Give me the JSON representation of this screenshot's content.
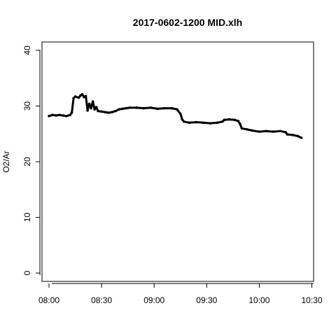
{
  "chart_data": {
    "type": "scatter",
    "title": "2017-0602-1200 MID.xlh",
    "xlabel": "",
    "ylabel": "O2/Ar",
    "x_unit": "time",
    "xlim": [
      "07:56",
      "10:31"
    ],
    "ylim": [
      -1.5,
      41.5
    ],
    "x_ticks": [
      "08:00",
      "08:30",
      "09:00",
      "09:30",
      "10:00",
      "10:30"
    ],
    "y_ticks": [
      0,
      10,
      20,
      30,
      40
    ],
    "grid": false,
    "legend": "none",
    "series": [
      {
        "color": "#000000",
        "points": [
          [
            "08:00",
            28.2
          ],
          [
            "08:02",
            28.4
          ],
          [
            "08:04",
            28.3
          ],
          [
            "08:06",
            28.4
          ],
          [
            "08:08",
            28.3
          ],
          [
            "08:10",
            28.2
          ],
          [
            "08:12",
            28.4
          ],
          [
            "08:13",
            28.8
          ],
          [
            "08:14",
            31.4
          ],
          [
            "08:15",
            31.7
          ],
          [
            "08:17",
            31.5
          ],
          [
            "08:18",
            31.9
          ],
          [
            "08:19",
            32.1
          ],
          [
            "08:20",
            31.6
          ],
          [
            "08:21",
            31.8
          ],
          [
            "08:22",
            29.2
          ],
          [
            "08:23",
            30.4
          ],
          [
            "08:24",
            29.6
          ],
          [
            "08:25",
            30.8
          ],
          [
            "08:26",
            29.4
          ],
          [
            "08:27",
            29.8
          ],
          [
            "08:28",
            29.1
          ],
          [
            "08:30",
            29.0
          ],
          [
            "08:32",
            28.9
          ],
          [
            "08:34",
            28.8
          ],
          [
            "08:36",
            28.9
          ],
          [
            "08:38",
            29.1
          ],
          [
            "08:40",
            29.4
          ],
          [
            "08:42",
            29.5
          ],
          [
            "08:44",
            29.6
          ],
          [
            "08:46",
            29.7
          ],
          [
            "08:50",
            29.7
          ],
          [
            "08:54",
            29.6
          ],
          [
            "08:58",
            29.7
          ],
          [
            "09:02",
            29.5
          ],
          [
            "09:06",
            29.6
          ],
          [
            "09:10",
            29.6
          ],
          [
            "09:13",
            29.4
          ],
          [
            "09:15",
            28.6
          ],
          [
            "09:16",
            27.6
          ],
          [
            "09:17",
            27.2
          ],
          [
            "09:20",
            27.0
          ],
          [
            "09:24",
            27.1
          ],
          [
            "09:28",
            27.0
          ],
          [
            "09:32",
            26.9
          ],
          [
            "09:36",
            27.0
          ],
          [
            "09:39",
            27.2
          ],
          [
            "09:40",
            27.5
          ],
          [
            "09:43",
            27.6
          ],
          [
            "09:46",
            27.5
          ],
          [
            "09:48",
            27.3
          ],
          [
            "09:49",
            26.8
          ],
          [
            "09:50",
            26.0
          ],
          [
            "09:53",
            25.8
          ],
          [
            "09:56",
            25.6
          ],
          [
            "10:00",
            25.4
          ],
          [
            "10:04",
            25.5
          ],
          [
            "10:08",
            25.4
          ],
          [
            "10:12",
            25.5
          ],
          [
            "10:15",
            25.3
          ],
          [
            "10:16",
            24.9
          ],
          [
            "10:19",
            24.8
          ],
          [
            "10:22",
            24.6
          ],
          [
            "10:24",
            24.3
          ]
        ]
      }
    ]
  }
}
